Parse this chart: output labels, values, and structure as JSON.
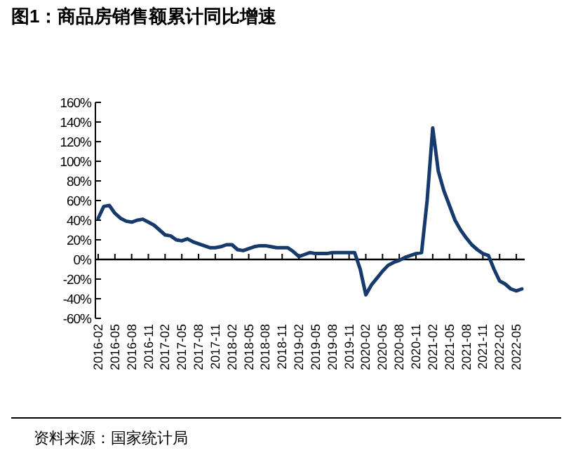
{
  "chart_data": {
    "type": "line",
    "title": "图1：商品房销售额累计同比增速",
    "annotations": [
      "资料来源：国家统计局"
    ],
    "categories": [
      "2016-02",
      null,
      null,
      "2016-05",
      null,
      null,
      "2016-08",
      null,
      null,
      "2016-11",
      null,
      null,
      "2017-02",
      null,
      null,
      "2017-05",
      null,
      null,
      "2017-08",
      null,
      null,
      "2017-11",
      null,
      null,
      "2018-02",
      null,
      null,
      "2018-05",
      null,
      null,
      "2018-08",
      null,
      null,
      "2018-11",
      null,
      null,
      "2019-02",
      null,
      null,
      "2019-05",
      null,
      null,
      "2019-08",
      null,
      null,
      "2019-11",
      null,
      null,
      "2020-02",
      null,
      null,
      "2020-05",
      null,
      null,
      "2020-08",
      null,
      null,
      "2020-11",
      null,
      null,
      "2021-02",
      null,
      null,
      "2021-05",
      null,
      null,
      "2021-08",
      null,
      null,
      "2021-11",
      null,
      null,
      "2022-02",
      null,
      null,
      "2022-05",
      null
    ],
    "series": [
      {
        "color": "#163a6b",
        "values": [
          42,
          54,
          55,
          47,
          42,
          39,
          38,
          40,
          41,
          38,
          35,
          30,
          25,
          24,
          20,
          19,
          21,
          18,
          16,
          14,
          12,
          12,
          13,
          15,
          15,
          10,
          9,
          11,
          13,
          14,
          14,
          13,
          12,
          12,
          12,
          8,
          3,
          5,
          7,
          6,
          6,
          6,
          7,
          7,
          7,
          7,
          7,
          -10,
          -36,
          -26,
          -19,
          -12,
          -6,
          -3,
          -1,
          2,
          4,
          6,
          7,
          60,
          134,
          90,
          70,
          55,
          40,
          30,
          22,
          15,
          10,
          6,
          4,
          -10,
          -22,
          -25,
          -30,
          -32,
          -30
        ]
      }
    ],
    "ylim": [
      -60,
      160
    ],
    "yticks": [
      {
        "value": 160,
        "label": "160%"
      },
      {
        "value": 140,
        "label": "140%"
      },
      {
        "value": 120,
        "label": "120%"
      },
      {
        "value": 100,
        "label": "100%"
      },
      {
        "value": 80,
        "label": "80%"
      },
      {
        "value": 60,
        "label": "60%"
      },
      {
        "value": 40,
        "label": "40%"
      },
      {
        "value": 20,
        "label": "20%"
      },
      {
        "value": 0,
        "label": "0%"
      },
      {
        "value": -20,
        "label": "-20%"
      },
      {
        "value": -40,
        "label": "-40%"
      },
      {
        "value": -60,
        "label": "-60%"
      }
    ]
  }
}
